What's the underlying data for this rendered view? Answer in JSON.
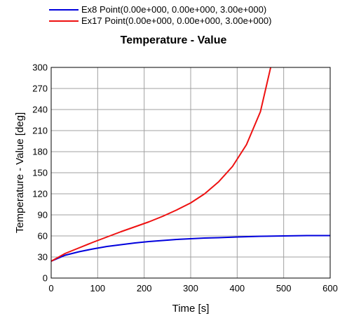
{
  "chart_data": {
    "type": "line",
    "title": "Temperature - Value",
    "xlabel": "Time [s]",
    "ylabel": "Temperature - Value [deg]",
    "xlim": [
      0,
      600
    ],
    "ylim": [
      0,
      300
    ],
    "xticks": [
      0,
      100,
      200,
      300,
      400,
      500,
      600
    ],
    "yticks": [
      0,
      30,
      60,
      90,
      120,
      150,
      180,
      210,
      240,
      270,
      300
    ],
    "grid": true,
    "legend_position": "top-left",
    "series": [
      {
        "name": "Ex8 Point(0.00e+000, 0.00e+000, 3.00e+000)",
        "color": "#0000dd",
        "x": [
          0,
          30,
          60,
          90,
          120,
          150,
          180,
          210,
          240,
          270,
          300,
          330,
          360,
          400,
          450,
          500,
          550,
          600
        ],
        "y": [
          24,
          32.5,
          37.5,
          41.5,
          45,
          47.5,
          50,
          52,
          53.5,
          55,
          56,
          57,
          57.5,
          58.5,
          59.5,
          60,
          60.5,
          60.5
        ]
      },
      {
        "name": "Ex17 Point(0.00e+000, 0.00e+000, 3.00e+000)",
        "color": "#ee1111",
        "x": [
          0,
          30,
          60,
          90,
          120,
          150,
          180,
          210,
          240,
          270,
          300,
          330,
          360,
          390,
          420,
          450,
          472
        ],
        "y": [
          24,
          35,
          43,
          51,
          58.5,
          66,
          73,
          80,
          88,
          97,
          107,
          120,
          137,
          159,
          190,
          237,
          300
        ]
      }
    ]
  }
}
